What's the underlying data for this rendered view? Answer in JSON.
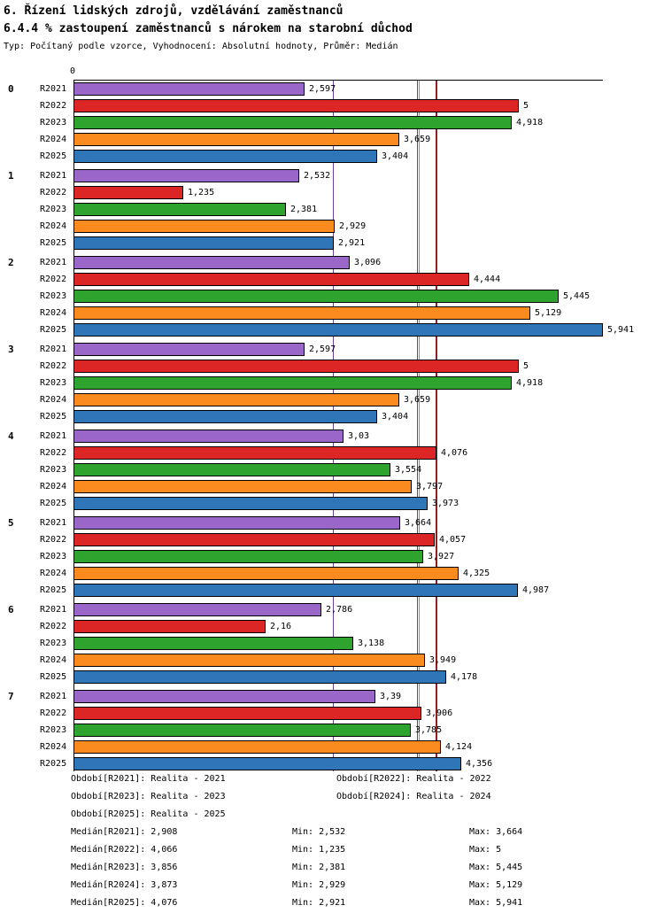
{
  "header": {
    "title": "6. Řízení lidských zdrojů, vzdělávání zaměstnanců",
    "subtitle": "6.4.4 % zastoupení zaměstnanců s nárokem na starobní důchod",
    "meta": "Typ: Počítaný podle vzorce, Vyhodnocení: Absolutní hodnoty, Průměr: Medián"
  },
  "chart_data": {
    "type": "bar",
    "orientation": "horizontal",
    "axis": {
      "zero_label": "0",
      "min": 0,
      "max": 5.941
    },
    "series": [
      "R2021",
      "R2022",
      "R2023",
      "R2024",
      "R2025"
    ],
    "series_colors": {
      "R2021": "#9A67C8",
      "R2022": "#DC2626",
      "R2023": "#2EA32E",
      "R2024": "#FB8B1F",
      "R2025": "#2E76B8"
    },
    "median_line_colors": {
      "R2021": "#6B3FA0",
      "R2022": "#8B1A1A",
      "R2023": "#1E7A1E",
      "R2024": "#B8960B",
      "R2025": "#1F4E8C"
    },
    "medians": {
      "R2021": 2.908,
      "R2022": 4.066,
      "R2023": 3.856,
      "R2024": 3.873,
      "R2025": 4.076
    },
    "groups": [
      {
        "label": "0",
        "values": [
          2.597,
          5,
          4.918,
          3.659,
          3.404
        ],
        "value_labels": [
          "2,597",
          "5",
          "4,918",
          "3,659",
          "3,404"
        ]
      },
      {
        "label": "1",
        "values": [
          2.532,
          1.235,
          2.381,
          2.929,
          2.921
        ],
        "value_labels": [
          "2,532",
          "1,235",
          "2,381",
          "2,929",
          "2,921"
        ]
      },
      {
        "label": "2",
        "values": [
          3.096,
          4.444,
          5.445,
          5.129,
          5.941
        ],
        "value_labels": [
          "3,096",
          "4,444",
          "5,445",
          "5,129",
          "5,941"
        ]
      },
      {
        "label": "3",
        "values": [
          2.597,
          5,
          4.918,
          3.659,
          3.404
        ],
        "value_labels": [
          "2,597",
          "5",
          "4,918",
          "3,659",
          "3,404"
        ]
      },
      {
        "label": "4",
        "values": [
          3.03,
          4.076,
          3.554,
          3.797,
          3.973
        ],
        "value_labels": [
          "3,03",
          "4,076",
          "3,554",
          "3,797",
          "3,973"
        ]
      },
      {
        "label": "5",
        "values": [
          3.664,
          4.057,
          3.927,
          4.325,
          4.987
        ],
        "value_labels": [
          "3,664",
          "4,057",
          "3,927",
          "4,325",
          "4,987"
        ]
      },
      {
        "label": "6",
        "values": [
          2.786,
          2.16,
          3.138,
          3.949,
          4.178
        ],
        "value_labels": [
          "2,786",
          "2,16",
          "3,138",
          "3,949",
          "4,178"
        ]
      },
      {
        "label": "7",
        "values": [
          3.39,
          3.906,
          3.785,
          4.124,
          4.356
        ],
        "value_labels": [
          "3,39",
          "3,906",
          "3,785",
          "4,124",
          "4,356"
        ]
      }
    ]
  },
  "legend": {
    "rows": [
      [
        "Období[R2021]: Realita - 2021",
        "Období[R2022]: Realita - 2022"
      ],
      [
        "Období[R2023]: Realita - 2023",
        "Období[R2024]: Realita - 2024"
      ],
      [
        "Období[R2025]: Realita - 2025"
      ]
    ]
  },
  "stats": {
    "rows": [
      {
        "median": "Medián[R2021]: 2,908",
        "min": "Min: 2,532",
        "max": "Max: 3,664"
      },
      {
        "median": "Medián[R2022]: 4,066",
        "min": "Min: 1,235",
        "max": "Max: 5"
      },
      {
        "median": "Medián[R2023]: 3,856",
        "min": "Min: 2,381",
        "max": "Max: 5,445"
      },
      {
        "median": "Medián[R2024]: 3,873",
        "min": "Min: 2,929",
        "max": "Max: 5,129"
      },
      {
        "median": "Medián[R2025]: 4,076",
        "min": "Min: 2,921",
        "max": "Max: 5,941"
      }
    ]
  }
}
